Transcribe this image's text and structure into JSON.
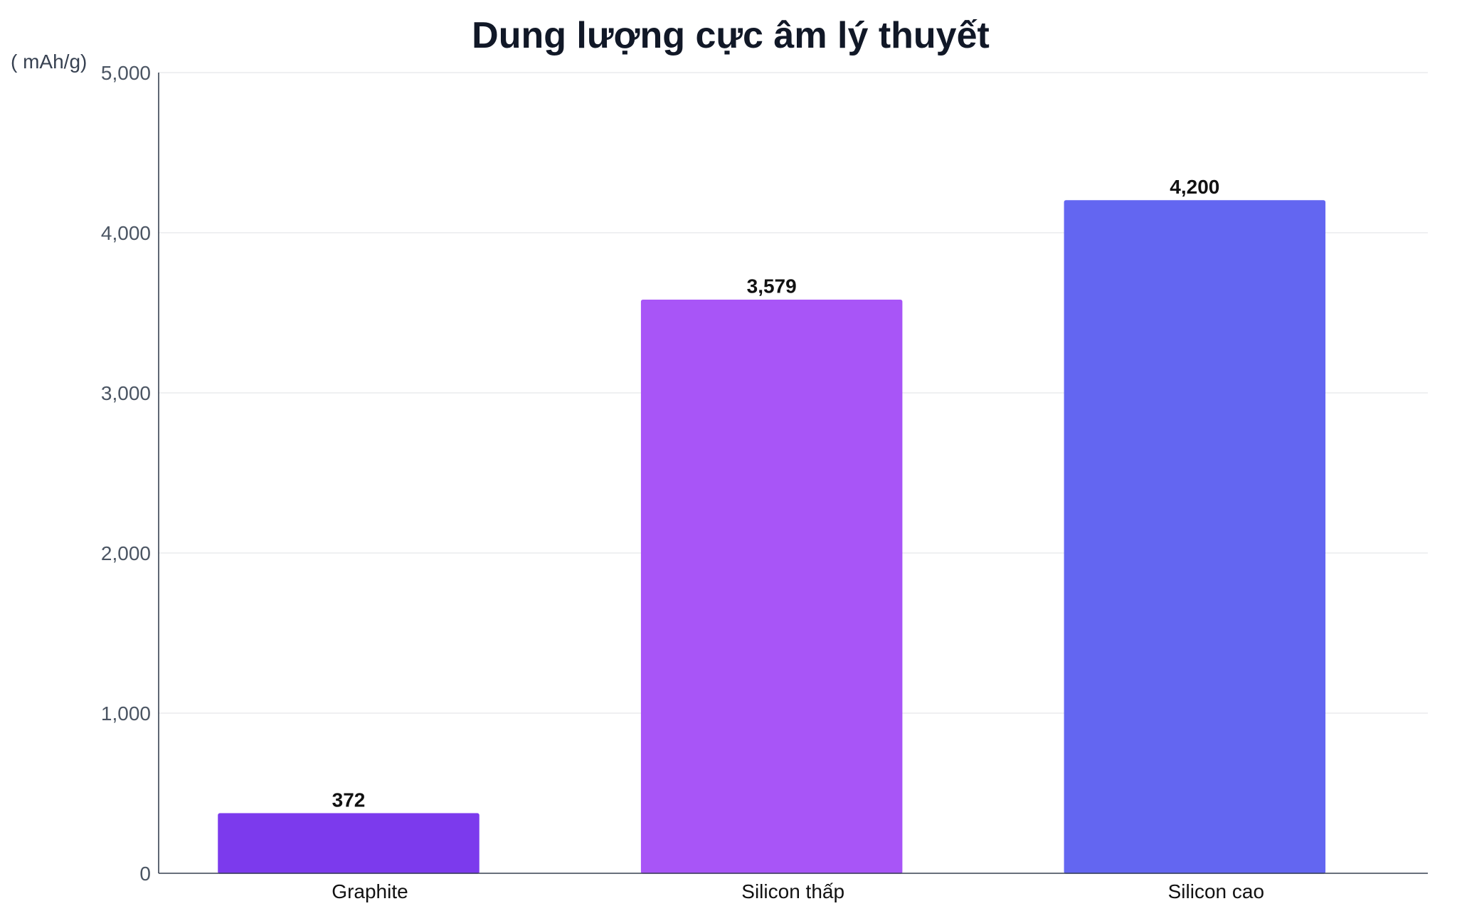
{
  "chart_data": {
    "type": "bar",
    "title": "Dung lượng cực âm lý thuyết",
    "unit_label": "( mAh/g)",
    "xlabel": "",
    "ylabel": "",
    "categories": [
      "Graphite",
      "Silicon thấp",
      "Silicon cao"
    ],
    "values": [
      372,
      3579,
      4200
    ],
    "data_labels": [
      "372",
      "3,579",
      "4,200"
    ],
    "bar_colors": [
      "#7c3aed",
      "#a855f7",
      "#6366f1"
    ],
    "ylim": [
      0,
      5000
    ],
    "yticks": [
      0,
      1000,
      2000,
      3000,
      4000,
      5000
    ],
    "ytick_labels": [
      "0",
      "1,000",
      "2,000",
      "3,000",
      "4,000",
      "5,000"
    ],
    "grid": true,
    "legend": "none"
  }
}
